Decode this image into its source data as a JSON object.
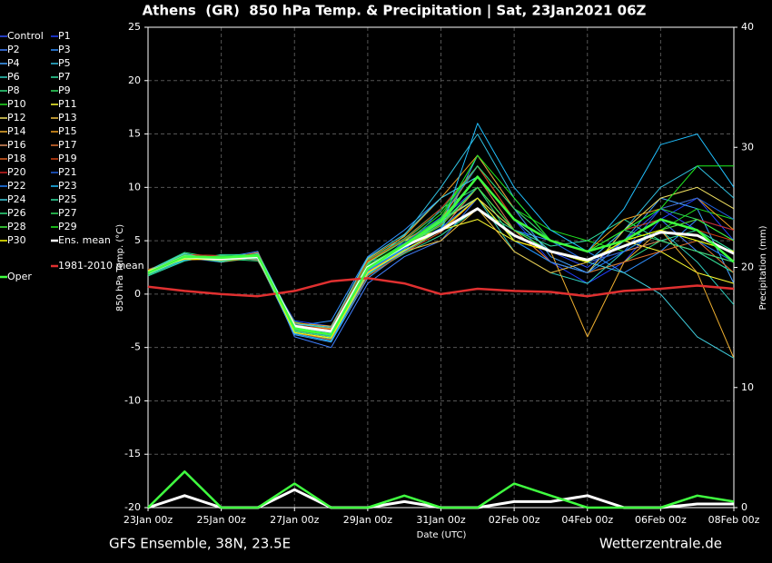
{
  "chart_data": {
    "type": "line",
    "title": "Athens  (GR)  850 hPa Temp. & Precipitation | Sat, 23Jan2021 06Z",
    "ylabel": "850 hPa Temp. (°C)",
    "y2label": "Precipitation (mm)",
    "xlabel": "Date (UTC)",
    "footer_left": "GFS Ensemble, 38N, 23.5E",
    "footer_right": "Wetterzentrale.de",
    "categories": [
      "23Jan 00z",
      null,
      "25Jan 00z",
      null,
      "27Jan 00z",
      null,
      "29Jan 00z",
      null,
      "31Jan 00z",
      null,
      "02Feb 00z",
      null,
      "04Feb 00z",
      null,
      "06Feb 00z",
      null,
      "08Feb 00z"
    ],
    "ylim": [
      -20,
      25
    ],
    "yticks": [
      -20,
      -15,
      -10,
      -5,
      0,
      5,
      10,
      15,
      20,
      25
    ],
    "y2lim": [
      0,
      40
    ],
    "y2ticks": [
      0,
      10,
      20,
      30,
      40
    ],
    "grid": true,
    "series": [
      {
        "name": "Control",
        "color": "#3050ff",
        "values": [
          2,
          3.4,
          3.0,
          3.8,
          -3.5,
          -4,
          2,
          5,
          7,
          10,
          6,
          4,
          2.5,
          5,
          8,
          6,
          3
        ]
      },
      {
        "name": "P1",
        "color": "#2040ff",
        "values": [
          2.2,
          3.6,
          3.5,
          3.2,
          -2.5,
          -3,
          3,
          4,
          8,
          12,
          7,
          3,
          1,
          3,
          7,
          9,
          5
        ]
      },
      {
        "name": "P2",
        "color": "#4080ff",
        "values": [
          1.8,
          3.2,
          3.4,
          4,
          -4,
          -5,
          1,
          3.5,
          5,
          9,
          5,
          4,
          3,
          6,
          7,
          4,
          2
        ]
      },
      {
        "name": "P3",
        "color": "#3090ff",
        "values": [
          2.1,
          3.8,
          3.1,
          3.6,
          -3,
          -2.5,
          3.5,
          6,
          9,
          11,
          6,
          5,
          4,
          2,
          4,
          7,
          6
        ]
      },
      {
        "name": "P4",
        "color": "#40a0ff",
        "values": [
          1.9,
          3.3,
          3.6,
          3.3,
          -3.8,
          -4.5,
          1.5,
          4,
          6,
          13,
          8,
          3.5,
          2,
          5,
          9,
          8,
          1
        ]
      },
      {
        "name": "P5",
        "color": "#30c0e0",
        "values": [
          2,
          3.7,
          3.2,
          3.9,
          -2.8,
          -3.2,
          2.8,
          5.5,
          10,
          15,
          9,
          5,
          3,
          6,
          10,
          12,
          9
        ]
      },
      {
        "name": "P6",
        "color": "#30d0c0",
        "values": [
          2.3,
          3.5,
          3.0,
          3.4,
          -3.2,
          -3.8,
          2.2,
          4.2,
          7,
          9,
          4,
          2,
          1,
          4,
          6,
          3,
          -1
        ]
      },
      {
        "name": "P7",
        "color": "#30e0a0",
        "values": [
          1.7,
          3.1,
          3.7,
          3.7,
          -3.6,
          -4.2,
          1.8,
          3.8,
          5.5,
          8,
          6,
          4.5,
          5,
          7,
          5,
          6,
          4
        ]
      },
      {
        "name": "P8",
        "color": "#30e080",
        "values": [
          2.2,
          3.9,
          3.3,
          3.1,
          -2.6,
          -3.3,
          3.2,
          5.2,
          8,
          10,
          5,
          3,
          2,
          3,
          5,
          4,
          2
        ]
      },
      {
        "name": "P9",
        "color": "#30e060",
        "values": [
          2,
          3.4,
          3.5,
          3.5,
          -3.4,
          -3.9,
          2.4,
          4.6,
          6.5,
          11,
          7,
          5,
          4,
          6,
          8,
          7,
          5
        ]
      },
      {
        "name": "P10",
        "color": "#20e020",
        "values": [
          1.9,
          3.6,
          3.2,
          3.8,
          -3.1,
          -3.6,
          2.6,
          4.8,
          7.5,
          12,
          8,
          6,
          5,
          4,
          6,
          8,
          7
        ]
      },
      {
        "name": "P11",
        "color": "#ffff30",
        "values": [
          2.1,
          3.3,
          3.4,
          3.3,
          -2.9,
          -3.4,
          2.9,
          5,
          6,
          7,
          5,
          4,
          3,
          5,
          4,
          2,
          1
        ]
      },
      {
        "name": "P12",
        "color": "#f0e060",
        "values": [
          2,
          3.5,
          3.1,
          3.6,
          -3.3,
          -3.7,
          2.3,
          4.4,
          6.8,
          9,
          6,
          3,
          2,
          6,
          9,
          10,
          8
        ]
      },
      {
        "name": "P13",
        "color": "#f0c040",
        "values": [
          1.8,
          3.7,
          3.6,
          3.4,
          -3.7,
          -4.1,
          2,
          4,
          5,
          8,
          4,
          2,
          3,
          5,
          7,
          6,
          3
        ]
      },
      {
        "name": "P14",
        "color": "#f0b030",
        "values": [
          2.2,
          3.2,
          3.3,
          3.7,
          -3,
          -3.2,
          3,
          5,
          7,
          12,
          7,
          4,
          -4,
          3,
          6,
          2,
          -6
        ]
      },
      {
        "name": "P15",
        "color": "#f0a020",
        "values": [
          2,
          3.8,
          3,
          3.5,
          -2.7,
          -3,
          3.3,
          5.4,
          9,
          13,
          8,
          5,
          4,
          7,
          8,
          9,
          6
        ]
      },
      {
        "name": "P16",
        "color": "#e09060",
        "values": [
          2.1,
          3.4,
          3.5,
          3.2,
          -3.5,
          -4,
          2.1,
          4.1,
          6,
          10,
          6,
          4,
          3,
          4,
          5,
          4,
          3
        ]
      },
      {
        "name": "P17",
        "color": "#e07030",
        "values": [
          1.9,
          3.6,
          3.2,
          3.9,
          -3.2,
          -3.5,
          2.7,
          4.7,
          7,
          11,
          6,
          3,
          2,
          3,
          4,
          5,
          2
        ]
      },
      {
        "name": "P18",
        "color": "#e06020",
        "values": [
          2,
          3.3,
          3.4,
          3.4,
          -3.6,
          -4.3,
          1.7,
          3.9,
          5.8,
          9,
          5,
          4,
          3,
          5,
          6,
          5,
          4
        ]
      },
      {
        "name": "P19",
        "color": "#d04010",
        "values": [
          2.3,
          3.5,
          3.1,
          3.6,
          -2.9,
          -3.3,
          3.1,
          5.1,
          8,
          12,
          7,
          5,
          4,
          6,
          7,
          6,
          5
        ]
      },
      {
        "name": "P20",
        "color": "#d02020",
        "values": [
          1.8,
          3.7,
          3.6,
          3.3,
          -3.4,
          -3.8,
          2.4,
          4.5,
          6.5,
          10,
          6,
          4,
          3,
          5,
          6,
          7,
          6
        ]
      },
      {
        "name": "P21",
        "color": "#2060e0",
        "values": [
          2,
          3.4,
          3.2,
          3.7,
          -3.1,
          -3.6,
          2.6,
          4.8,
          7.2,
          12,
          8,
          5,
          3,
          4,
          8,
          9,
          7
        ]
      },
      {
        "name": "P22",
        "color": "#2080ff",
        "values": [
          2.1,
          3.6,
          3.3,
          3.5,
          -3.3,
          -3.9,
          2.2,
          4.3,
          6.2,
          9,
          5,
          3,
          2,
          4,
          6,
          5,
          3
        ]
      },
      {
        "name": "P23",
        "color": "#20c0ff",
        "values": [
          1.9,
          3.2,
          3.5,
          3.4,
          -3.7,
          -4.4,
          1.9,
          4,
          6,
          16,
          10,
          6,
          4,
          8,
          14,
          15,
          10
        ]
      },
      {
        "name": "P24",
        "color": "#40d0e0",
        "values": [
          2.2,
          3.8,
          3,
          3.8,
          -2.8,
          -3.1,
          3.4,
          5.6,
          9,
          11,
          7,
          4,
          3,
          2,
          0,
          -4,
          -6
        ]
      },
      {
        "name": "P25",
        "color": "#30e0a0",
        "values": [
          2,
          3.5,
          3.4,
          3.3,
          -3.5,
          -4,
          2.3,
          4.4,
          6.6,
          10,
          6,
          4,
          3,
          5,
          7,
          6,
          4
        ]
      },
      {
        "name": "P26",
        "color": "#30e080",
        "values": [
          1.8,
          3.3,
          3.6,
          3.6,
          -3.2,
          -3.7,
          2.5,
          4.6,
          7,
          11,
          7,
          5,
          4,
          6,
          5,
          4,
          3
        ]
      },
      {
        "name": "P27",
        "color": "#30e060",
        "values": [
          2.1,
          3.7,
          3.1,
          3.5,
          -3,
          -3.4,
          2.9,
          5,
          7.8,
          12,
          8,
          5,
          4,
          5,
          6,
          5,
          4
        ]
      },
      {
        "name": "P28",
        "color": "#40f040",
        "values": [
          2,
          3.4,
          3.3,
          3.4,
          -3.4,
          -3.8,
          2.4,
          4.5,
          6.4,
          10,
          6,
          4,
          3,
          5,
          6,
          7,
          5
        ]
      },
      {
        "name": "P29",
        "color": "#20f020",
        "values": [
          1.9,
          3.6,
          3.5,
          3.7,
          -3.1,
          -3.5,
          2.7,
          4.7,
          7.1,
          13,
          9,
          5,
          4,
          6,
          8,
          12,
          12
        ]
      },
      {
        "name": "P30",
        "color": "#ffff00",
        "values": [
          2.2,
          3.3,
          3.2,
          3.5,
          -3.6,
          -4.1,
          2,
          4.1,
          6,
          9,
          5,
          4,
          3,
          5,
          6,
          5,
          4
        ]
      },
      {
        "name": "Ens. mean",
        "color": "#ffffff",
        "values": [
          2,
          3.5,
          3.3,
          3.5,
          -3,
          -3.5,
          2.5,
          4.5,
          6,
          8,
          5.5,
          4,
          3.2,
          4.5,
          5.8,
          5.5,
          3.8
        ],
        "precipitation": [
          0,
          1,
          0,
          0,
          1.5,
          0,
          0,
          0.5,
          0,
          0,
          0.5,
          0.5,
          1,
          0,
          0,
          0.3,
          0.3
        ]
      },
      {
        "name": "1981-2010 mean",
        "color": "#e03030",
        "values": [
          0.7,
          0.3,
          0,
          -0.2,
          0.3,
          1.2,
          1.5,
          1.0,
          0,
          0.5,
          0.3,
          0.2,
          -0.2,
          0.3,
          0.5,
          0.8,
          0.5
        ]
      },
      {
        "name": "Oper",
        "color": "#40ff40",
        "values": [
          2,
          3.5,
          3.4,
          3.6,
          -3.2,
          -3.8,
          2.4,
          4.6,
          6.8,
          11,
          7,
          5,
          4,
          5,
          7,
          6,
          3
        ],
        "precipitation": [
          0,
          3,
          0,
          0,
          2,
          0,
          0,
          1,
          0,
          0,
          2,
          1,
          0,
          0,
          0,
          1,
          0.5
        ]
      }
    ]
  }
}
